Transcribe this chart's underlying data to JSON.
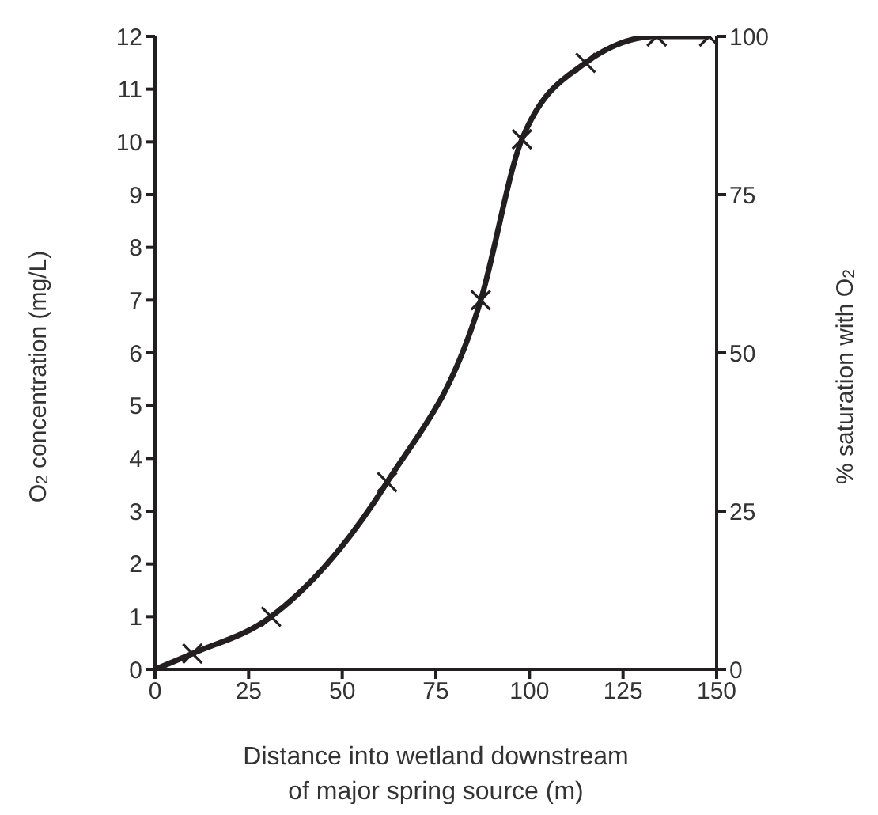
{
  "chart_data": {
    "type": "line",
    "xlabel": "Distance into wetland downstream of major spring source (m)",
    "ylabel": "O$_{2}$ concentration (mg/L)",
    "y2label": "% saturation with O$_{2}$",
    "xlim": [
      0,
      150
    ],
    "xticks": [
      0,
      25,
      50,
      75,
      100,
      125,
      150
    ],
    "ylim": [
      0,
      12
    ],
    "yticks": [
      0,
      1,
      2,
      3,
      4,
      5,
      6,
      7,
      8,
      9,
      10,
      11,
      12
    ],
    "y2lim": [
      0,
      100
    ],
    "y2ticks": [
      0,
      25,
      50,
      75,
      100
    ],
    "grid": false,
    "series": [
      {
        "color": "#231f20",
        "marker": "none",
        "x": [
          0,
          10,
          31,
          62,
          87,
          98,
          115,
          134,
          148
        ],
        "values": [
          0,
          0.3,
          1.0,
          3.55,
          7.0,
          10.05,
          11.5,
          12,
          12
        ]
      },
      {
        "type": "scatter",
        "color": "#231f20",
        "marker": "cross",
        "x": [
          10,
          31,
          62,
          87,
          98,
          115,
          134,
          148
        ],
        "values": [
          0.3,
          1.0,
          3.55,
          7.0,
          10.05,
          11.5,
          12,
          12
        ]
      }
    ]
  }
}
